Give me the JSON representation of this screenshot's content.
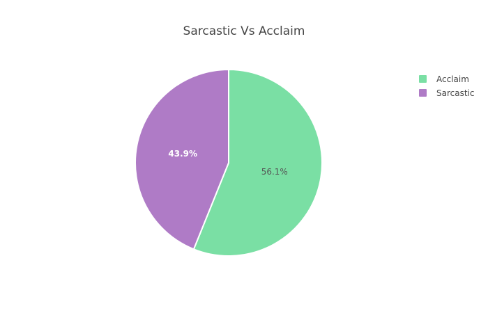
{
  "chart_data": {
    "type": "pie",
    "title": "Sarcastic Vs Acclaim",
    "slices": [
      {
        "label": "Acclaim",
        "percent": 56.1,
        "percent_label": "56.1%",
        "color": "#7ADFA4"
      },
      {
        "label": "Sarcastic",
        "percent": 43.9,
        "percent_label": "43.9%",
        "color": "#AF7BC6"
      }
    ],
    "legend": {
      "placement": "top-right",
      "entries": [
        "Acclaim",
        "Sarcastic"
      ]
    },
    "label_colors": {
      "Acclaim": "#555555",
      "Sarcastic": "#ffffff"
    }
  }
}
